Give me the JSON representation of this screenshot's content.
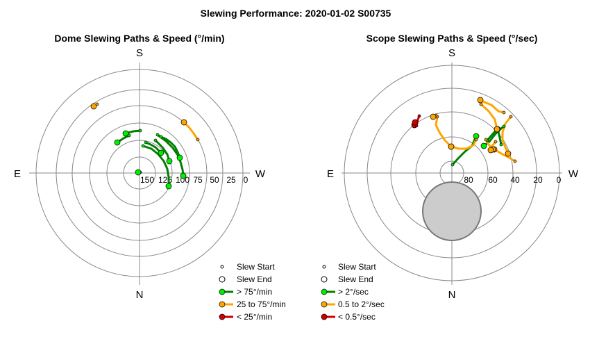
{
  "title": "Slewing Performance: 2020-01-02 S00735",
  "chart_data": [
    {
      "type": "scatter",
      "subtitle": "Dome Slewing Paths & Speed (°/min)",
      "directions": {
        "top": "S",
        "bottom": "N",
        "left": "E",
        "right": "W"
      },
      "radial_tick_labels": [
        "150",
        "125",
        "100",
        "75",
        "50",
        "25",
        "0"
      ],
      "legend": {
        "start_label": "Slew Start",
        "end_label": "Slew End",
        "categories": [
          {
            "label": "> 75°/min",
            "color": "#008000",
            "marker_color": "#00ee00"
          },
          {
            "label": "25 to 75°/min",
            "color": "#ffa500",
            "marker_color": "#ffa500"
          },
          {
            "label": "< 25°/min",
            "color": "#d00000",
            "marker_color": "#d00000"
          }
        ]
      },
      "paths": [
        {
          "cat": 0,
          "points": [
            [
              202,
              248
            ],
            [
              199,
              248
            ]
          ]
        },
        {
          "cat": 0,
          "points": [
            [
              202,
              188
            ],
            [
              192,
              189
            ],
            [
              181,
              192
            ]
          ]
        },
        {
          "cat": 0,
          "points": [
            [
              186,
              195
            ],
            [
              178,
              199
            ],
            [
              169,
              205
            ]
          ]
        },
        {
          "cat": 0,
          "points": [
            [
              210,
              205
            ],
            [
              217,
              208
            ],
            [
              224,
              212
            ],
            [
              229,
              217
            ],
            [
              232,
              220
            ]
          ]
        },
        {
          "cat": 0,
          "points": [
            [
              206,
              210
            ],
            [
              218,
              214
            ],
            [
              228,
              222
            ],
            [
              236,
              232
            ],
            [
              241,
              243
            ],
            [
              243,
              255
            ],
            [
              243,
              268
            ]
          ]
        },
        {
          "cat": 0,
          "points": [
            [
              224,
              202
            ],
            [
              234,
              212
            ],
            [
              241,
              222
            ],
            [
              244,
              232
            ]
          ]
        },
        {
          "cat": 0,
          "points": [
            [
              227,
              194
            ],
            [
              239,
              203
            ],
            [
              249,
              213
            ],
            [
              256,
              223
            ],
            [
              260,
              233
            ],
            [
              263,
              244
            ],
            [
              264,
              253
            ]
          ]
        },
        {
          "cat": 0,
          "points": [
            [
              232,
              197
            ],
            [
              239,
              200
            ],
            [
              246,
              205
            ],
            [
              252,
              211
            ],
            [
              256,
              219
            ],
            [
              259,
              227
            ]
          ]
        },
        {
          "cat": 1,
          "points": [
            [
              285,
              201
            ],
            [
              279,
              192
            ],
            [
              273,
              184
            ],
            [
              265,
              176
            ]
          ]
        },
        {
          "cat": 1,
          "points": [
            [
              140,
              150
            ],
            [
              135,
              153
            ]
          ]
        }
      ]
    },
    {
      "type": "scatter",
      "subtitle": "Scope Slewing Paths & Speed (°/sec)",
      "directions": {
        "top": "S",
        "bottom": "N",
        "left": "E",
        "right": "W"
      },
      "radial_tick_labels": [
        "80",
        "60",
        "40",
        "20",
        "0"
      ],
      "legend": {
        "start_label": "Slew Start",
        "end_label": "Slew End",
        "categories": [
          {
            "label": "> 2°/sec",
            "color": "#008000",
            "marker_color": "#00ee00"
          },
          {
            "label": "0.5 to 2°/sec",
            "color": "#ffa500",
            "marker_color": "#ffa500"
          },
          {
            "label": "< 0.5°/sec",
            "color": "#d00000",
            "marker_color": "#d00000"
          }
        ]
      },
      "paths": [
        {
          "cat": 0,
          "points": [
            [
              652,
              237
            ],
            [
              660,
              228
            ],
            [
              670,
              218
            ],
            [
              680,
              210
            ],
            [
              686,
              196
            ]
          ]
        },
        {
          "cat": 0,
          "points": [
            [
              726,
              182
            ],
            [
              718,
              188
            ],
            [
              711,
              196
            ],
            [
              705,
              204
            ],
            [
              697,
              210
            ]
          ]
        },
        {
          "cat": 0,
          "points": [
            [
              702,
              202
            ],
            [
              708,
              195
            ],
            [
              716,
              186
            ]
          ]
        },
        {
          "cat": 0,
          "points": [
            [
              722,
              208
            ],
            [
              720,
              198
            ],
            [
              717,
              186
            ]
          ]
        },
        {
          "cat": 1,
          "points": [
            [
              736,
              168
            ],
            [
              728,
              178
            ],
            [
              724,
              190
            ],
            [
              724,
              202
            ],
            [
              728,
              212
            ],
            [
              732,
              221
            ]
          ]
        },
        {
          "cat": 1,
          "points": [
            [
              686,
              201
            ],
            [
              682,
              209
            ],
            [
              672,
              214
            ],
            [
              661,
              214
            ],
            [
              650,
              211
            ]
          ]
        },
        {
          "cat": 1,
          "points": [
            [
              630,
              168
            ],
            [
              628,
              180
            ],
            [
              634,
              192
            ],
            [
              641,
              202
            ],
            [
              650,
              211
            ]
          ]
        },
        {
          "cat": 1,
          "points": [
            [
              726,
              162
            ],
            [
              718,
              160
            ],
            [
              708,
              151
            ],
            [
              698,
              147
            ],
            [
              692,
              144
            ]
          ]
        },
        {
          "cat": 1,
          "points": [
            [
              693,
              150
            ],
            [
              704,
              160
            ],
            [
              713,
              172
            ],
            [
              716,
              186
            ]
          ]
        },
        {
          "cat": 1,
          "points": [
            [
              742,
              232
            ],
            [
              732,
              226
            ],
            [
              724,
              222
            ],
            [
              712,
              215
            ]
          ]
        },
        {
          "cat": 1,
          "points": [
            [
              700,
              201
            ],
            [
              704,
              208
            ],
            [
              710,
              215
            ]
          ]
        },
        {
          "cat": 1,
          "points": [
            [
              714,
              204
            ],
            [
              709,
              210
            ],
            [
              707,
              216
            ]
          ]
        },
        {
          "cat": 1,
          "points": [
            [
              628,
              166
            ],
            [
              624,
              168
            ]
          ]
        },
        {
          "cat": 2,
          "points": [
            [
              604,
              167
            ],
            [
              602,
              172
            ],
            [
              601,
              178
            ],
            [
              597,
              180
            ]
          ]
        },
        {
          "cat": 2,
          "points": [
            [
              600,
              181
            ],
            [
              599,
              178
            ],
            [
              598,
              176
            ]
          ]
        }
      ]
    }
  ]
}
